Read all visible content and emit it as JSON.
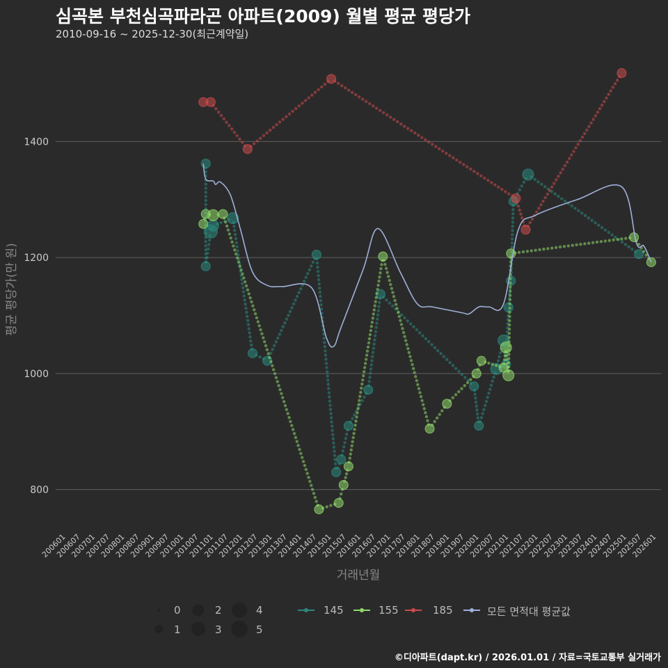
{
  "title": "심곡본 부천심곡파라곤 아파트(2009) 월별 평균 평당가",
  "subtitle": "2010-09-16 ~ 2025-12-30(최근계약일)",
  "caption": "©디아파트(dapt.kr) / 2026.01.01 / 자료=국토교통부 실거래가",
  "colors": {
    "background": "#2b2a2b",
    "grid": "#5f5f5f",
    "s145": "#2a8a7e",
    "s155": "#8fd86a",
    "s185": "#cc4b4b",
    "avg": "#9fb1d8"
  },
  "chart_data": {
    "type": "scatter",
    "xlabel": "거래년월",
    "ylabel": "평균 평당가(만 원)",
    "ylim": [
      730,
      1560
    ],
    "yticks": [
      800,
      1000,
      1200,
      1400
    ],
    "x_range": [
      "2006-01",
      "2026-01"
    ],
    "x_ticks": [
      "200601",
      "200607",
      "200701",
      "200707",
      "200801",
      "200807",
      "200901",
      "200907",
      "201001",
      "201007",
      "201101",
      "201107",
      "201201",
      "201207",
      "201301",
      "201307",
      "201401",
      "201407",
      "201501",
      "201507",
      "201601",
      "201607",
      "201701",
      "201707",
      "201801",
      "201807",
      "201901",
      "201907",
      "202001",
      "202007",
      "202101",
      "202107",
      "202201",
      "202207",
      "202301",
      "202307",
      "202401",
      "202407",
      "202501",
      "202507",
      "202601"
    ],
    "size_legend": {
      "title": "",
      "values": [
        0,
        1,
        2,
        3,
        4,
        5
      ]
    },
    "series": [
      {
        "name": "145",
        "color": "#2a8a7e",
        "points": [
          {
            "x": "2010-11",
            "y": 1362,
            "n": 2
          },
          {
            "x": "2010-11",
            "y": 1185,
            "n": 2
          },
          {
            "x": "2011-01",
            "y": 1245,
            "n": 4
          },
          {
            "x": "2011-02",
            "y": 1255,
            "n": 3
          },
          {
            "x": "2011-10",
            "y": 1268,
            "n": 3
          },
          {
            "x": "2012-06",
            "y": 1035,
            "n": 2
          },
          {
            "x": "2012-12",
            "y": 1022,
            "n": 2
          },
          {
            "x": "2014-08",
            "y": 1205,
            "n": 2
          },
          {
            "x": "2015-04",
            "y": 830,
            "n": 2
          },
          {
            "x": "2015-06",
            "y": 852,
            "n": 2
          },
          {
            "x": "2015-09",
            "y": 910,
            "n": 2
          },
          {
            "x": "2016-05",
            "y": 972,
            "n": 2
          },
          {
            "x": "2016-10",
            "y": 1137,
            "n": 2
          },
          {
            "x": "2019-12",
            "y": 978,
            "n": 2
          },
          {
            "x": "2020-02",
            "y": 910,
            "n": 2
          },
          {
            "x": "2020-09",
            "y": 1008,
            "n": 3
          },
          {
            "x": "2020-12",
            "y": 1057,
            "n": 3
          },
          {
            "x": "2021-01",
            "y": 1016,
            "n": 2
          },
          {
            "x": "2021-02",
            "y": 1114,
            "n": 2
          },
          {
            "x": "2021-03",
            "y": 1160,
            "n": 2
          },
          {
            "x": "2021-04",
            "y": 1297,
            "n": 2
          },
          {
            "x": "2021-10",
            "y": 1343,
            "n": 3
          },
          {
            "x": "2025-07",
            "y": 1206,
            "n": 2
          }
        ]
      },
      {
        "name": "155",
        "color": "#8fd86a",
        "points": [
          {
            "x": "2010-10",
            "y": 1258,
            "n": 2
          },
          {
            "x": "2010-11",
            "y": 1275,
            "n": 2
          },
          {
            "x": "2011-02",
            "y": 1273,
            "n": 3
          },
          {
            "x": "2011-06",
            "y": 1275,
            "n": 2
          },
          {
            "x": "2014-09",
            "y": 766,
            "n": 2
          },
          {
            "x": "2015-05",
            "y": 777,
            "n": 2
          },
          {
            "x": "2015-07",
            "y": 808,
            "n": 2
          },
          {
            "x": "2015-09",
            "y": 840,
            "n": 2
          },
          {
            "x": "2016-11",
            "y": 1202,
            "n": 2
          },
          {
            "x": "2018-06",
            "y": 905,
            "n": 2
          },
          {
            "x": "2019-01",
            "y": 948,
            "n": 2
          },
          {
            "x": "2020-01",
            "y": 1000,
            "n": 2
          },
          {
            "x": "2020-03",
            "y": 1022,
            "n": 2
          },
          {
            "x": "2020-12",
            "y": 1010,
            "n": 2
          },
          {
            "x": "2021-01",
            "y": 1045,
            "n": 3
          },
          {
            "x": "2021-02",
            "y": 997,
            "n": 3
          },
          {
            "x": "2021-03",
            "y": 1207,
            "n": 2
          },
          {
            "x": "2025-05",
            "y": 1235,
            "n": 2
          },
          {
            "x": "2025-12",
            "y": 1192,
            "n": 2
          }
        ]
      },
      {
        "name": "185",
        "color": "#cc4b4b",
        "points": [
          {
            "x": "2010-10",
            "y": 1468,
            "n": 2
          },
          {
            "x": "2011-01",
            "y": 1468,
            "n": 2
          },
          {
            "x": "2012-04",
            "y": 1387,
            "n": 2
          },
          {
            "x": "2015-02",
            "y": 1508,
            "n": 2
          },
          {
            "x": "2021-05",
            "y": 1302,
            "n": 2
          },
          {
            "x": "2021-09",
            "y": 1248,
            "n": 2
          },
          {
            "x": "2024-12",
            "y": 1518,
            "n": 2
          }
        ]
      }
    ],
    "average": {
      "name": "모든 면적대 평균값",
      "color": "#9fb1d8",
      "points": [
        {
          "x": "2010-10",
          "y": 1362
        },
        {
          "x": "2010-11",
          "y": 1335
        },
        {
          "x": "2011-02",
          "y": 1332
        },
        {
          "x": "2011-03",
          "y": 1326
        },
        {
          "x": "2011-05",
          "y": 1330
        },
        {
          "x": "2011-09",
          "y": 1308
        },
        {
          "x": "2012-01",
          "y": 1250
        },
        {
          "x": "2012-06",
          "y": 1175
        },
        {
          "x": "2012-12",
          "y": 1152
        },
        {
          "x": "2013-06",
          "y": 1150
        },
        {
          "x": "2014-06",
          "y": 1148
        },
        {
          "x": "2014-12",
          "y": 1062
        },
        {
          "x": "2015-03",
          "y": 1047
        },
        {
          "x": "2015-06",
          "y": 1080
        },
        {
          "x": "2016-03",
          "y": 1180
        },
        {
          "x": "2016-09",
          "y": 1250
        },
        {
          "x": "2017-06",
          "y": 1175
        },
        {
          "x": "2018-01",
          "y": 1120
        },
        {
          "x": "2018-07",
          "y": 1115
        },
        {
          "x": "2019-07",
          "y": 1105
        },
        {
          "x": "2019-10",
          "y": 1103
        },
        {
          "x": "2020-02",
          "y": 1115
        },
        {
          "x": "2020-06",
          "y": 1115
        },
        {
          "x": "2020-12",
          "y": 1120
        },
        {
          "x": "2021-06",
          "y": 1248
        },
        {
          "x": "2022-01",
          "y": 1273
        },
        {
          "x": "2023-06",
          "y": 1300
        },
        {
          "x": "2024-12",
          "y": 1322
        },
        {
          "x": "2025-06",
          "y": 1225
        },
        {
          "x": "2025-09",
          "y": 1220
        },
        {
          "x": "2025-12",
          "y": 1192
        }
      ]
    }
  },
  "legend": {
    "sizes": [
      "0",
      "1",
      "2",
      "3",
      "4",
      "5"
    ],
    "series": [
      "145",
      "155",
      "185",
      "모든 면적대 평균값"
    ]
  }
}
